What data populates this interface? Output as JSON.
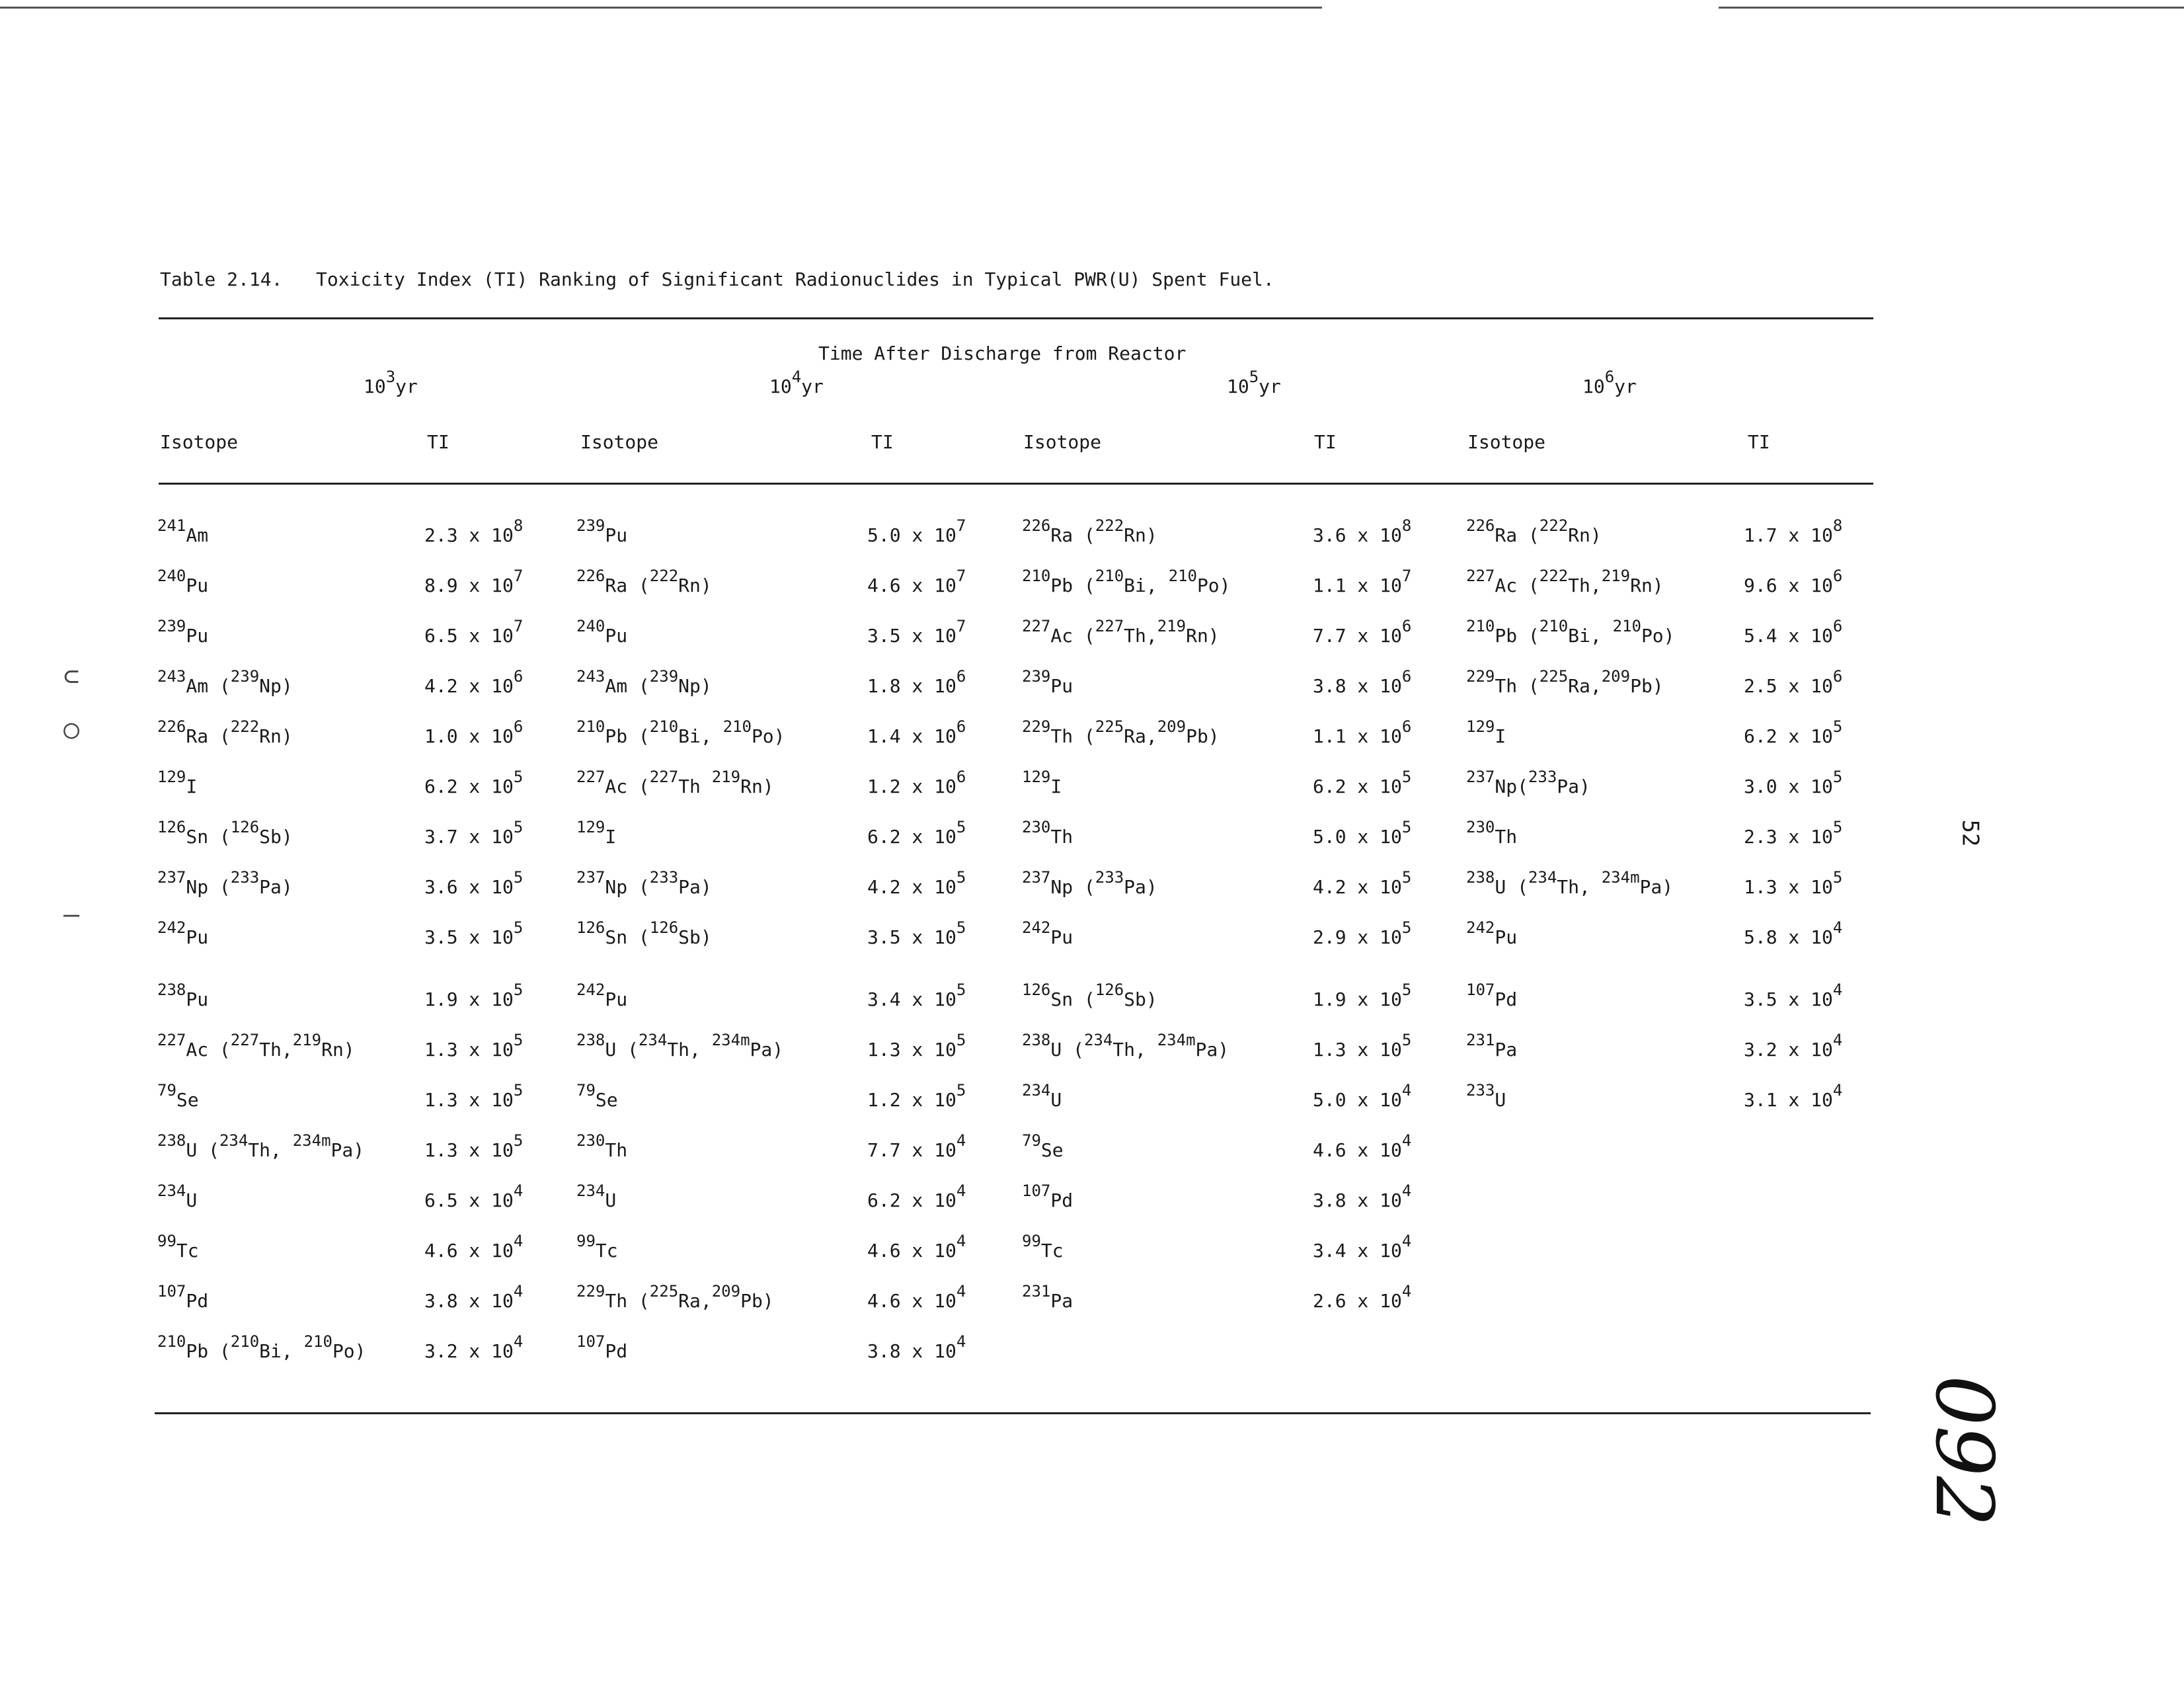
{
  "title": "Table 2.14.   Toxicity Index (TI) Ranking of Significant Radionuclides in Typical PWR(U) Spent Fuel.",
  "heading": "Time After Discharge from Reactor",
  "periods": [
    {
      "base": "10",
      "exp": "3",
      "unit": "yr"
    },
    {
      "base": "10",
      "exp": "4",
      "unit": "yr"
    },
    {
      "base": "10",
      "exp": "5",
      "unit": "yr"
    },
    {
      "base": "10",
      "exp": "6",
      "unit": "yr"
    }
  ],
  "column_headers": {
    "isotope": "Isotope",
    "ti": "TI"
  },
  "page_number": "52",
  "handwritten_note": "092",
  "columns": [
    [
      {
        "iso": "<sup>241</sup>Am",
        "ti": "2.3 x 10<sup>8</sup>"
      },
      {
        "iso": "<sup>240</sup>Pu",
        "ti": "8.9 x 10<sup>7</sup>"
      },
      {
        "iso": "<sup>239</sup>Pu",
        "ti": "6.5 x 10<sup>7</sup>"
      },
      {
        "iso": "<sup>243</sup>Am (<sup>239</sup>Np)",
        "ti": "4.2 x 10<sup>6</sup>"
      },
      {
        "iso": "<sup>226</sup>Ra (<sup>222</sup>Rn)",
        "ti": "1.0 x 10<sup>6</sup>"
      },
      {
        "iso": "<sup>129</sup>I",
        "ti": "6.2 x 10<sup>5</sup>"
      },
      {
        "iso": "<sup>126</sup>Sn (<sup>126</sup>Sb)",
        "ti": "3.7 x 10<sup>5</sup>"
      },
      {
        "iso": "<sup>237</sup>Np (<sup>233</sup>Pa)",
        "ti": "3.6 x 10<sup>5</sup>"
      },
      {
        "iso": "<sup>242</sup>Pu",
        "ti": "3.5 x 10<sup>5</sup>"
      },
      {
        "iso": "<sup>238</sup>Pu",
        "ti": "1.9 x 10<sup>5</sup>"
      },
      {
        "iso": "<sup>227</sup>Ac (<sup>227</sup>Th,<sup>219</sup>Rn)",
        "ti": "1.3 x 10<sup>5</sup>"
      },
      {
        "iso": "<sup>79</sup>Se",
        "ti": "1.3 x 10<sup>5</sup>"
      },
      {
        "iso": "<sup>238</sup>U (<sup>234</sup>Th, <sup>234m</sup>Pa)",
        "ti": "1.3 x 10<sup>5</sup>"
      },
      {
        "iso": "<sup>234</sup>U",
        "ti": "6.5 x 10<sup>4</sup>"
      },
      {
        "iso": "<sup>99</sup>Tc",
        "ti": "4.6 x 10<sup>4</sup>"
      },
      {
        "iso": "<sup>107</sup>Pd",
        "ti": "3.8 x 10<sup>4</sup>"
      },
      {
        "iso": "<sup>210</sup>Pb (<sup>210</sup>Bi, <sup>210</sup>Po)",
        "ti": "3.2 x 10<sup>4</sup>"
      }
    ],
    [
      {
        "iso": "<sup>239</sup>Pu",
        "ti": "5.0 x 10<sup>7</sup>"
      },
      {
        "iso": "<sup>226</sup>Ra (<sup>222</sup>Rn)",
        "ti": "4.6 x 10<sup>7</sup>"
      },
      {
        "iso": "<sup>240</sup>Pu",
        "ti": "3.5 x 10<sup>7</sup>"
      },
      {
        "iso": "<sup>243</sup>Am (<sup>239</sup>Np)",
        "ti": "1.8 x 10<sup>6</sup>"
      },
      {
        "iso": "<sup>210</sup>Pb (<sup>210</sup>Bi, <sup>210</sup>Po)",
        "ti": "1.4 x 10<sup>6</sup>"
      },
      {
        "iso": "<sup>227</sup>Ac (<sup>227</sup>Th <sup>219</sup>Rn)",
        "ti": "1.2 x 10<sup>6</sup>"
      },
      {
        "iso": "<sup>129</sup>I",
        "ti": "6.2 x 10<sup>5</sup>"
      },
      {
        "iso": "<sup>237</sup>Np (<sup>233</sup>Pa)",
        "ti": "4.2 x 10<sup>5</sup>"
      },
      {
        "iso": "<sup>126</sup>Sn (<sup>126</sup>Sb)",
        "ti": "3.5 x 10<sup>5</sup>"
      },
      {
        "iso": "<sup>242</sup>Pu",
        "ti": "3.4 x 10<sup>5</sup>"
      },
      {
        "iso": "<sup>238</sup>U (<sup>234</sup>Th, <sup>234m</sup>Pa)",
        "ti": "1.3 x 10<sup>5</sup>"
      },
      {
        "iso": "<sup>79</sup>Se",
        "ti": "1.2 x 10<sup>5</sup>"
      },
      {
        "iso": "<sup>230</sup>Th",
        "ti": "7.7 x 10<sup>4</sup>"
      },
      {
        "iso": "<sup>234</sup>U",
        "ti": "6.2 x 10<sup>4</sup>"
      },
      {
        "iso": "<sup>99</sup>Tc",
        "ti": "4.6 x 10<sup>4</sup>"
      },
      {
        "iso": "<sup>229</sup>Th (<sup>225</sup>Ra,<sup>209</sup>Pb)",
        "ti": "4.6 x 10<sup>4</sup>"
      },
      {
        "iso": "<sup>107</sup>Pd",
        "ti": "3.8 x 10<sup>4</sup>"
      }
    ],
    [
      {
        "iso": "<sup>226</sup>Ra (<sup>222</sup>Rn)",
        "ti": "3.6 x 10<sup>8</sup>"
      },
      {
        "iso": "<sup>210</sup>Pb (<sup>210</sup>Bi, <sup>210</sup>Po)",
        "ti": "1.1 x 10<sup>7</sup>"
      },
      {
        "iso": "<sup>227</sup>Ac (<sup>227</sup>Th,<sup>219</sup>Rn)",
        "ti": "7.7 x 10<sup>6</sup>"
      },
      {
        "iso": "<sup>239</sup>Pu",
        "ti": "3.8 x 10<sup>6</sup>"
      },
      {
        "iso": "<sup>229</sup>Th (<sup>225</sup>Ra,<sup>209</sup>Pb)",
        "ti": "1.1 x 10<sup>6</sup>"
      },
      {
        "iso": "<sup>129</sup>I",
        "ti": "6.2 x 10<sup>5</sup>"
      },
      {
        "iso": "<sup>230</sup>Th",
        "ti": "5.0 x 10<sup>5</sup>"
      },
      {
        "iso": "<sup>237</sup>Np (<sup>233</sup>Pa)",
        "ti": "4.2 x 10<sup>5</sup>"
      },
      {
        "iso": "<sup>242</sup>Pu",
        "ti": "2.9 x 10<sup>5</sup>"
      },
      {
        "iso": "<sup>126</sup>Sn (<sup>126</sup>Sb)",
        "ti": "1.9 x 10<sup>5</sup>"
      },
      {
        "iso": "<sup>238</sup>U (<sup>234</sup>Th, <sup>234m</sup>Pa)",
        "ti": "1.3 x 10<sup>5</sup>"
      },
      {
        "iso": "<sup>234</sup>U",
        "ti": "5.0 x 10<sup>4</sup>"
      },
      {
        "iso": "<sup>79</sup>Se",
        "ti": "4.6 x 10<sup>4</sup>"
      },
      {
        "iso": "<sup>107</sup>Pd",
        "ti": "3.8 x 10<sup>4</sup>"
      },
      {
        "iso": "<sup>99</sup>Tc",
        "ti": "3.4 x 10<sup>4</sup>"
      },
      {
        "iso": "<sup>231</sup>Pa",
        "ti": "2.6 x 10<sup>4</sup>"
      }
    ],
    [
      {
        "iso": "<sup>226</sup>Ra (<sup>222</sup>Rn)",
        "ti": "1.7 x 10<sup>8</sup>"
      },
      {
        "iso": "<sup>227</sup>Ac (<sup>222</sup>Th,<sup>219</sup>Rn)",
        "ti": "9.6 x 10<sup>6</sup>"
      },
      {
        "iso": "<sup>210</sup>Pb (<sup>210</sup>Bi, <sup>210</sup>Po)",
        "ti": "5.4 x 10<sup>6</sup>"
      },
      {
        "iso": "<sup>229</sup>Th (<sup>225</sup>Ra,<sup>209</sup>Pb)",
        "ti": "2.5 x 10<sup>6</sup>"
      },
      {
        "iso": "<sup>129</sup>I",
        "ti": "6.2 x 10<sup>5</sup>"
      },
      {
        "iso": "<sup>237</sup>Np(<sup>233</sup>Pa)",
        "ti": "3.0 x 10<sup>5</sup>"
      },
      {
        "iso": "<sup>230</sup>Th",
        "ti": "2.3 x 10<sup>5</sup>"
      },
      {
        "iso": "<sup>238</sup>U (<sup>234</sup>Th, <sup>234m</sup>Pa)",
        "ti": "1.3 x 10<sup>5</sup>"
      },
      {
        "iso": "<sup>242</sup>Pu",
        "ti": "5.8 x 10<sup>4</sup>"
      },
      {
        "iso": "<sup>107</sup>Pd",
        "ti": "3.5 x 10<sup>4</sup>"
      },
      {
        "iso": "<sup>231</sup>Pa",
        "ti": "3.2 x 10<sup>4</sup>"
      },
      {
        "iso": "<sup>233</sup>U",
        "ti": "3.1 x 10<sup>4</sup>"
      }
    ]
  ]
}
